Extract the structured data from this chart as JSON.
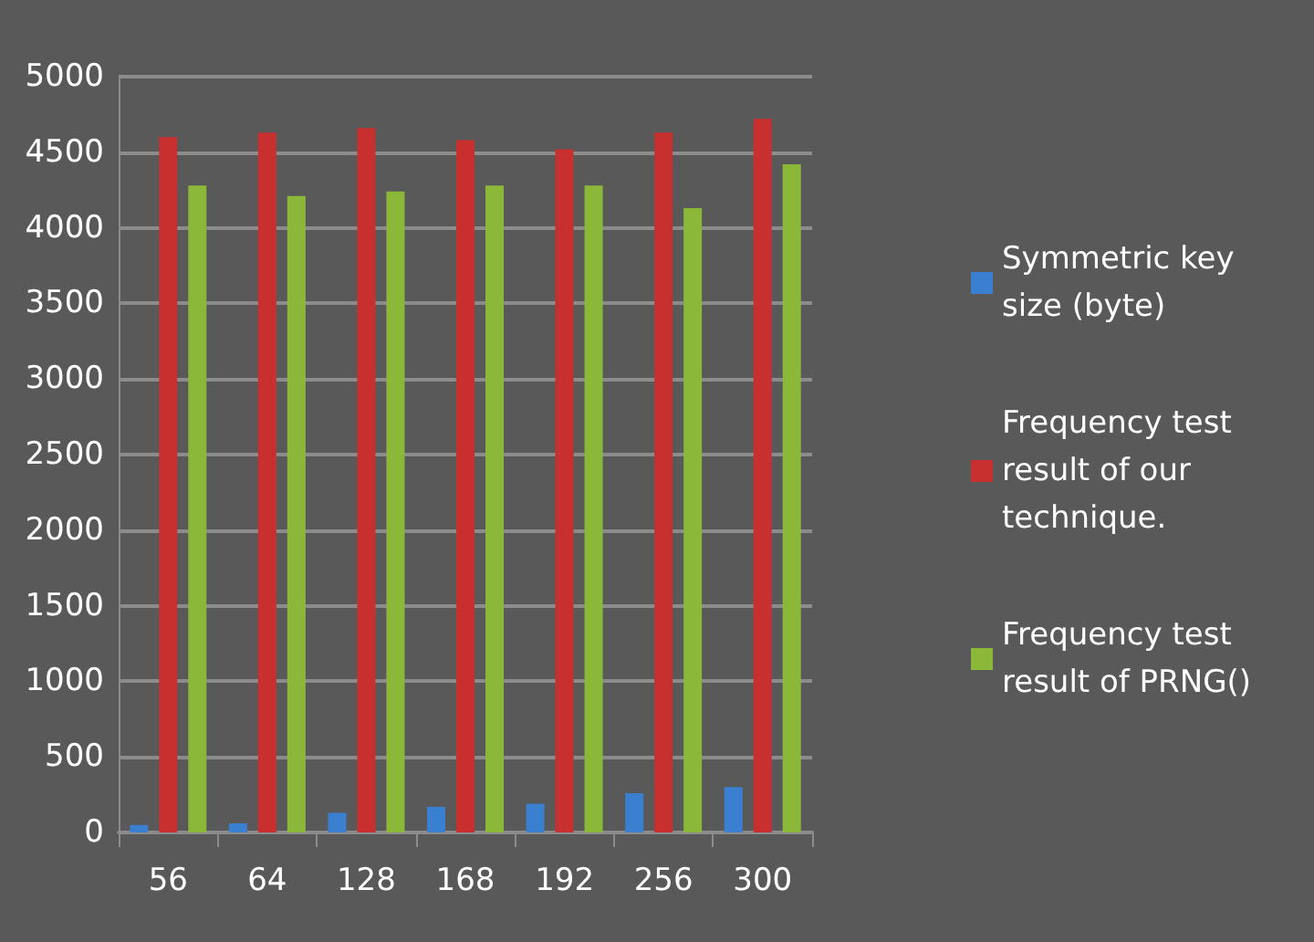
{
  "chart_data": {
    "type": "bar",
    "categories": [
      "56",
      "64",
      "128",
      "168",
      "192",
      "256",
      "300"
    ],
    "series": [
      {
        "name": "Symmetric key size (byte)",
        "color": "#3a7fd0",
        "values": [
          50,
          60,
          130,
          170,
          190,
          260,
          300
        ]
      },
      {
        "name": "Frequency test result of our technique.",
        "color": "#c83030",
        "values": [
          4600,
          4630,
          4660,
          4580,
          4520,
          4630,
          4720
        ]
      },
      {
        "name": "Frequency test result of PRNG()",
        "color": "#8cb83a",
        "values": [
          4280,
          4210,
          4240,
          4280,
          4280,
          4130,
          4420
        ]
      }
    ],
    "ylim": [
      0,
      5000
    ],
    "yticks": [
      0,
      500,
      1000,
      1500,
      2000,
      2500,
      3000,
      3500,
      4000,
      4500,
      5000
    ],
    "grid": "y",
    "legend": "right"
  }
}
